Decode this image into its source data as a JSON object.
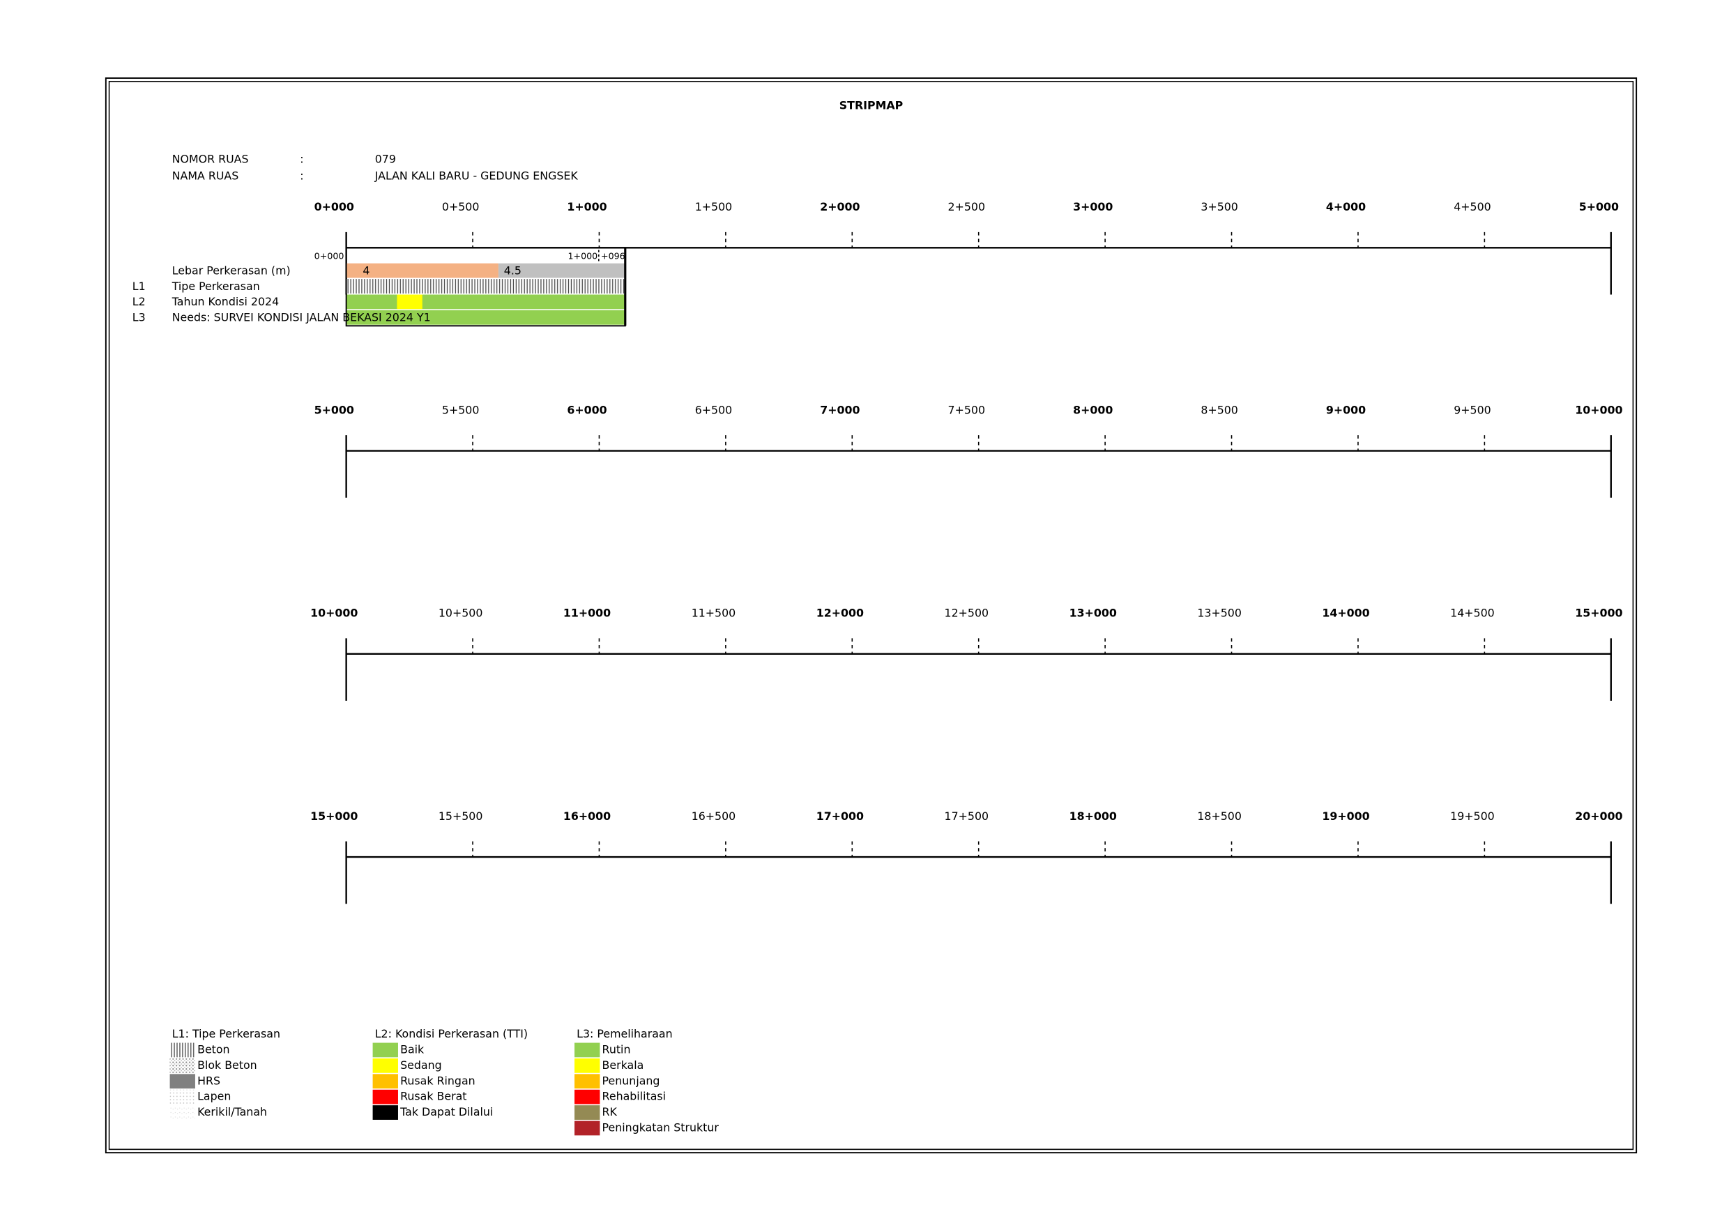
{
  "title": "STRIPMAP",
  "header": {
    "rows": [
      [
        "NOMOR RUAS",
        ":",
        "079"
      ],
      [
        "NAMA RUAS",
        ":",
        "JALAN KALI BARU - GEDUNG ENGSEK"
      ]
    ]
  },
  "strips": [
    {
      "ticks": [
        "0+000",
        "0+500",
        "1+000",
        "1+500",
        "2+000",
        "2+500",
        "3+000",
        "3+500",
        "4+000",
        "4+500",
        "5+000"
      ]
    },
    {
      "ticks": [
        "5+000",
        "5+500",
        "6+000",
        "6+500",
        "7+000",
        "7+500",
        "8+000",
        "8+500",
        "9+000",
        "9+500",
        "10+000"
      ]
    },
    {
      "ticks": [
        "10+000",
        "10+500",
        "11+000",
        "11+500",
        "12+000",
        "12+500",
        "13+000",
        "13+500",
        "14+000",
        "14+500",
        "15+000"
      ]
    },
    {
      "ticks": [
        "15+000",
        "15+500",
        "16+000",
        "16+500",
        "17+000",
        "17+500",
        "18+000",
        "18+500",
        "19+000",
        "19+500",
        "20+000"
      ]
    }
  ],
  "segment": {
    "start": "0+000",
    "end": "1+000",
    "end_extra": "+096"
  },
  "rows": [
    {
      "label": "Lebar Perkerasan (m)",
      "values": [
        "4",
        "4.5"
      ]
    },
    {
      "code": "L1",
      "label": "Tipe Perkerasan"
    },
    {
      "code": "L2",
      "label": "Tahun Kondisi 2024"
    },
    {
      "code": "L3",
      "label": "Needs: SURVEI KONDISI JALAN BEKASI 2024 Y1"
    }
  ],
  "legend": [
    {
      "title": "L1: Tipe Perkerasan",
      "items": [
        {
          "label": "Beton",
          "color": "url(#p-beton)"
        },
        {
          "label": "Blok Beton",
          "color": "url(#p-blok)"
        },
        {
          "label": "HRS",
          "color": "#808080"
        },
        {
          "label": "Lapen",
          "color": "url(#p-lapen)"
        },
        {
          "label": "Kerikil/Tanah",
          "color": "url(#p-kerikil)"
        }
      ]
    },
    {
      "title": "L2: Kondisi Perkerasan (TTI)",
      "items": [
        {
          "label": "Baik",
          "color": "#92d050"
        },
        {
          "label": "Sedang",
          "color": "#ffff00"
        },
        {
          "label": "Rusak Ringan",
          "color": "#ffc000"
        },
        {
          "label": "Rusak Berat",
          "color": "#ff0000"
        },
        {
          "label": "Tak Dapat Dilalui",
          "color": "#000000"
        }
      ]
    },
    {
      "title": "L3: Pemeliharaan",
      "items": [
        {
          "label": "Rutin",
          "color": "#92d050"
        },
        {
          "label": "Berkala",
          "color": "#ffff00"
        },
        {
          "label": "Penunjang",
          "color": "#ffc000"
        },
        {
          "label": "Rehabilitasi",
          "color": "#ff0000"
        },
        {
          "label": "RK",
          "color": "#948a54"
        },
        {
          "label": "Peningkatan Struktur",
          "color": "#b22228"
        }
      ]
    }
  ]
}
